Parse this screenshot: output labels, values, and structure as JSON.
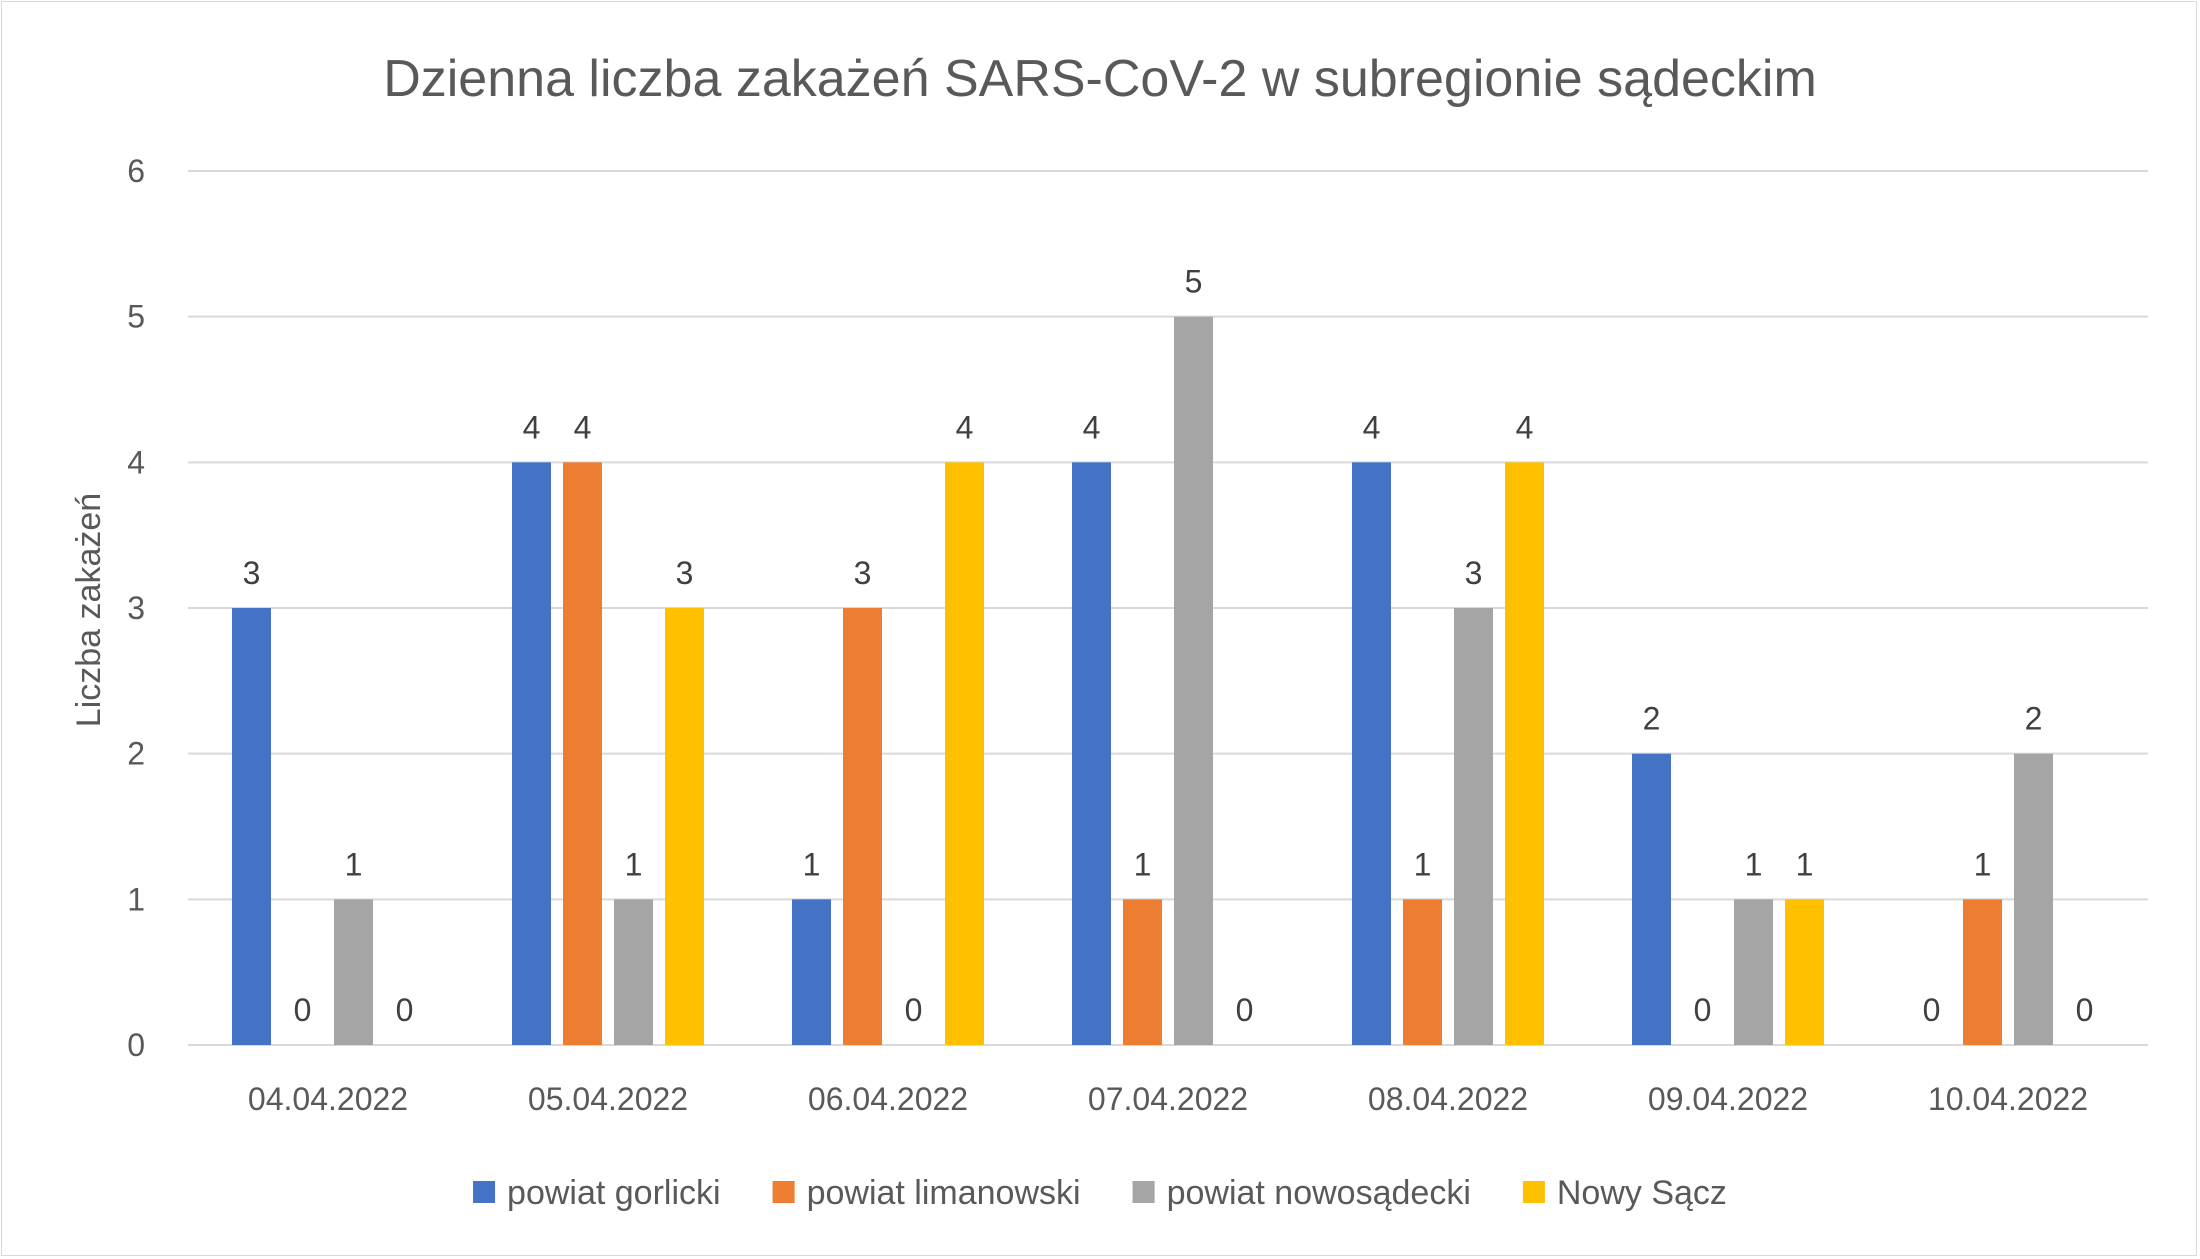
{
  "chart_data": {
    "type": "bar",
    "title": "Dzienna liczba zakażeń SARS-CoV-2 w subregionie sądeckim",
    "xlabel": "",
    "ylabel": "Liczba zakażeń",
    "ylim": [
      0,
      6
    ],
    "yticks": [
      0,
      1,
      2,
      3,
      4,
      5,
      6
    ],
    "grid": true,
    "legend_position": "bottom",
    "categories": [
      "04.04.2022",
      "05.04.2022",
      "06.04.2022",
      "07.04.2022",
      "08.04.2022",
      "09.04.2022",
      "10.04.2022"
    ],
    "series": [
      {
        "name": "powiat gorlicki",
        "color": "#4472C4",
        "values": [
          3,
          4,
          1,
          4,
          4,
          2,
          0
        ]
      },
      {
        "name": "powiat limanowski",
        "color": "#ED7D31",
        "values": [
          0,
          4,
          3,
          1,
          1,
          0,
          1
        ]
      },
      {
        "name": "powiat nowosądecki",
        "color": "#A5A5A5",
        "values": [
          1,
          1,
          0,
          5,
          3,
          1,
          2
        ]
      },
      {
        "name": "Nowy Sącz",
        "color": "#FFC000",
        "values": [
          0,
          3,
          4,
          0,
          4,
          1,
          0
        ]
      }
    ]
  }
}
